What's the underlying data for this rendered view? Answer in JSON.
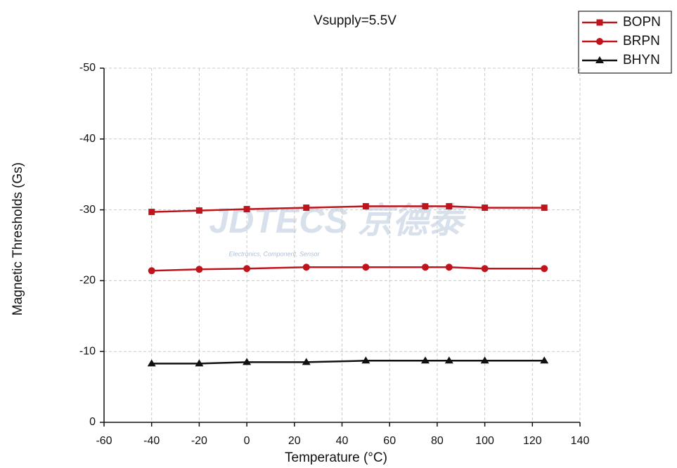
{
  "chart_data": {
    "type": "line",
    "title": "Vsupply=5.5V",
    "x_label": "Temperature (°C)",
    "y_label": "Magnetic Thresholds (Gs)",
    "watermark": "JDTECS 京德泰",
    "watermark_subtitle": "Electronics, Component, Sensor",
    "x": [
      -40,
      -20,
      0,
      25,
      50,
      75,
      85,
      100,
      125
    ],
    "series": [
      {
        "name": "BOPN",
        "color": "#c0141c",
        "marker": "square",
        "values": [
          -29.7,
          -29.9,
          -30.1,
          -30.3,
          -30.5,
          -30.5,
          -30.5,
          -30.3,
          -30.3
        ]
      },
      {
        "name": "BRPN",
        "color": "#c0141c",
        "marker": "circle",
        "values": [
          -21.4,
          -21.6,
          -21.7,
          -21.9,
          -21.9,
          -21.9,
          -21.9,
          -21.7,
          -21.7
        ]
      },
      {
        "name": "BHYN",
        "color": "#111111",
        "marker": "triangle",
        "values": [
          -8.3,
          -8.3,
          -8.5,
          -8.5,
          -8.7,
          -8.7,
          -8.7,
          -8.7,
          -8.7
        ]
      }
    ],
    "xlim": [
      -60,
      140
    ],
    "xticks": [
      -60,
      -40,
      -20,
      0,
      20,
      40,
      60,
      80,
      100,
      120,
      140
    ],
    "ylim": [
      0,
      -50
    ],
    "yticks": [
      0,
      -10,
      -20,
      -30,
      -40,
      -50
    ],
    "grid": true,
    "legend": "top-right"
  }
}
